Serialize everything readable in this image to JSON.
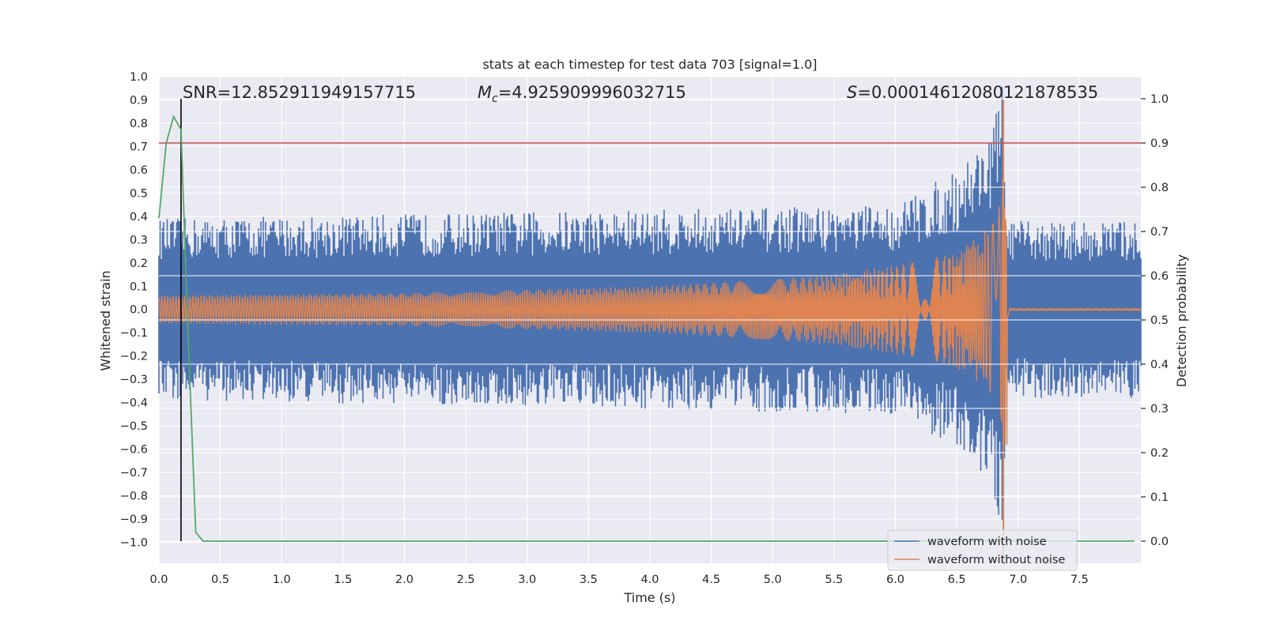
{
  "chart_data": {
    "type": "line",
    "title": "stats at each timestep for test data 703 [signal=1.0]",
    "xlabel": "Time (s)",
    "ylabel_left": "Whitened strain",
    "ylabel_right": "Detection probability",
    "xlim": [
      0.0,
      8.0
    ],
    "ylim_left": [
      -1.09,
      1.0
    ],
    "ylim_right": [
      -0.05,
      1.05
    ],
    "x_ticks": [
      "0.0",
      "0.5",
      "1.0",
      "1.5",
      "2.0",
      "2.5",
      "3.0",
      "3.5",
      "4.0",
      "4.5",
      "5.0",
      "5.5",
      "6.0",
      "6.5",
      "7.0",
      "7.5"
    ],
    "x_tick_values": [
      0.0,
      0.5,
      1.0,
      1.5,
      2.0,
      2.5,
      3.0,
      3.5,
      4.0,
      4.5,
      5.0,
      5.5,
      6.0,
      6.5,
      7.0,
      7.5
    ],
    "y_left_ticks": [
      "1.0",
      "0.9",
      "0.8",
      "0.7",
      "0.6",
      "0.5",
      "0.4",
      "0.3",
      "0.2",
      "0.1",
      "0.0",
      "−0.1",
      "−0.2",
      "−0.3",
      "−0.4",
      "−0.5",
      "−0.6",
      "−0.7",
      "−0.8",
      "−0.9",
      "−1.0"
    ],
    "y_left_tick_values": [
      1.0,
      0.9,
      0.8,
      0.7,
      0.6,
      0.5,
      0.4,
      0.3,
      0.2,
      0.1,
      0.0,
      -0.1,
      -0.2,
      -0.3,
      -0.4,
      -0.5,
      -0.6,
      -0.7,
      -0.8,
      -0.9,
      -1.0
    ],
    "y_right_ticks": [
      "1.0",
      "0.9",
      "0.8",
      "0.7",
      "0.6",
      "0.5",
      "0.4",
      "0.3",
      "0.2",
      "0.1",
      "0.0"
    ],
    "y_right_tick_values": [
      1.0,
      0.9,
      0.8,
      0.7,
      0.6,
      0.5,
      0.4,
      0.3,
      0.2,
      0.1,
      0.0
    ],
    "series": [
      {
        "name": "waveform with noise",
        "color": "#4c72b0",
        "noise_envelope_x": [
          0.0,
          6.0,
          6.5,
          6.8,
          6.88,
          6.9,
          6.93,
          8.0
        ],
        "noise_envelope_amplitude": [
          0.39,
          0.45,
          0.6,
          0.8,
          1.0,
          0.4,
          0.38,
          0.38
        ]
      },
      {
        "name": "waveform without noise",
        "color": "#dd8452",
        "envelope_x": [
          0.0,
          2.0,
          4.0,
          5.0,
          5.5,
          6.0,
          6.3,
          6.5,
          6.7,
          6.8,
          6.85,
          6.9,
          6.93,
          8.0
        ],
        "envelope_amplitude": [
          0.06,
          0.07,
          0.1,
          0.13,
          0.15,
          0.19,
          0.22,
          0.25,
          0.32,
          0.38,
          0.45,
          0.9,
          0.0,
          0.0
        ]
      },
      {
        "name": "detection probability",
        "color": "#55a868",
        "axis": "right",
        "x": [
          0.0,
          0.06,
          0.12,
          0.18,
          0.24,
          0.3,
          0.36,
          8.0
        ],
        "y": [
          0.73,
          0.9,
          0.96,
          0.93,
          0.45,
          0.02,
          0.0,
          0.0
        ]
      }
    ],
    "threshold_line": {
      "axis": "right",
      "value": 0.9,
      "color": "#c44e52"
    },
    "vertical_marker": {
      "x": 0.18,
      "color": "#000000"
    },
    "annotations": {
      "snr": "SNR=12.852911949157715",
      "mc_symbol": "M",
      "mc_subscript": "c",
      "mc_value": "=4.925909996032715",
      "s_symbol": "S",
      "s_value": "=0.00014612080121878535"
    },
    "legend_position": "lower-right",
    "grid": true,
    "background": "#eaeaf2"
  }
}
